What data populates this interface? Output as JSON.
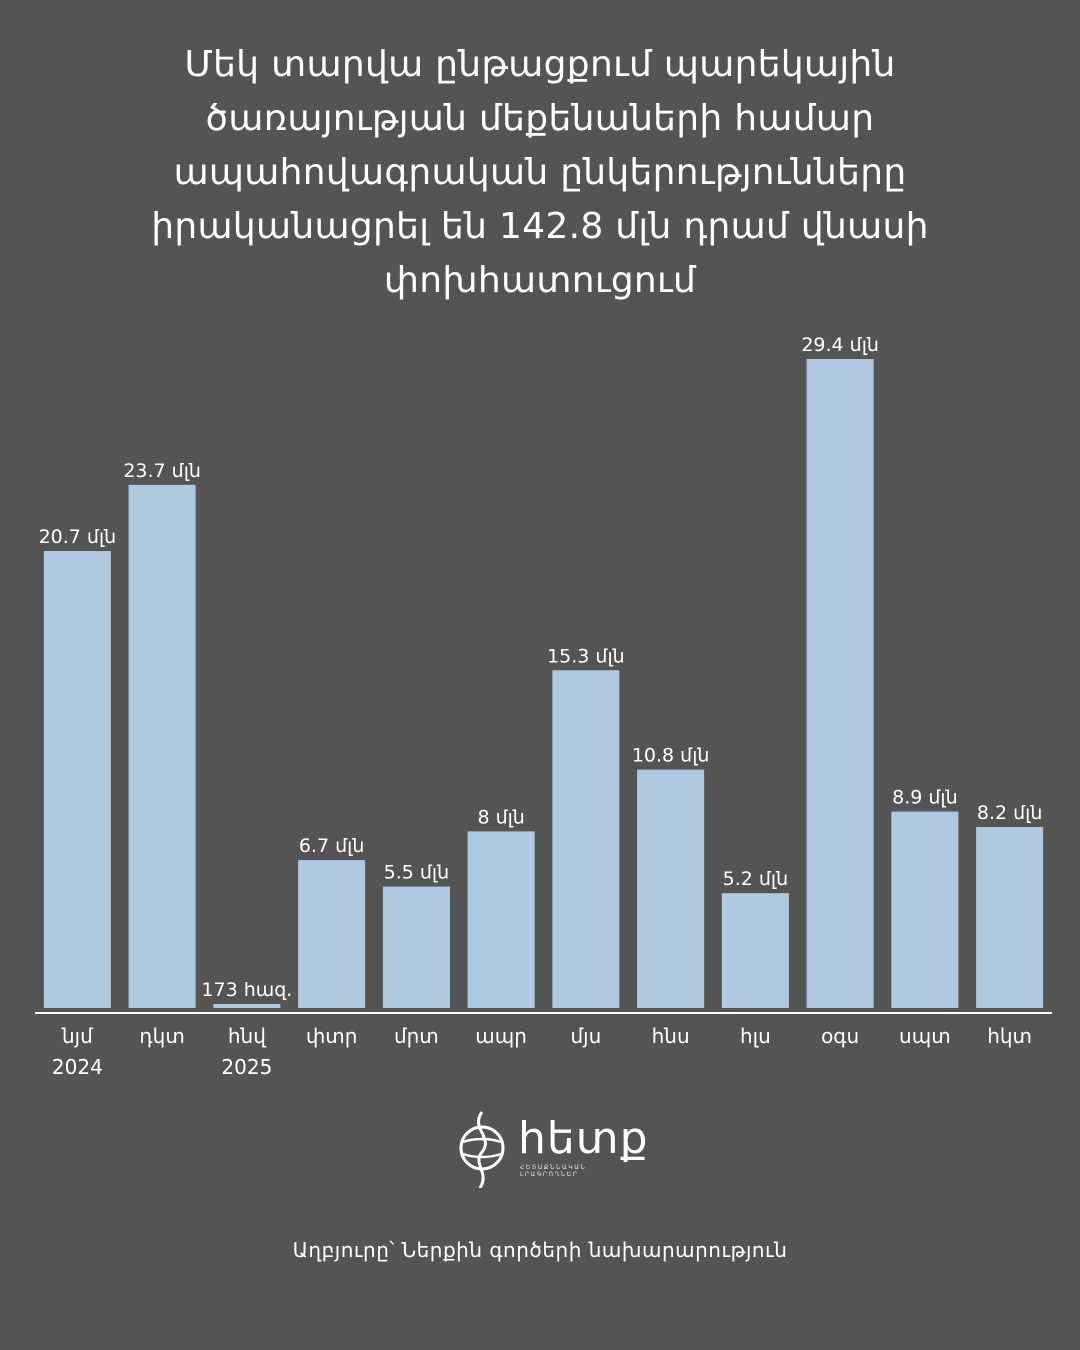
{
  "title_lines": [
    "Մեկ տարվա ընթացքում պարեկային",
    "ծառայության մեքենաների համար",
    "ապահովագրական ընկերությունները",
    "իրականացրել են 142.8 մլն դրամ վնասի",
    "փոխհատուցում"
  ],
  "source": "Աղբյուրը՝ Ներքին գործերի նախարարություն",
  "logo": {
    "word": "հետք",
    "sub": "ՀԵՏԱՔՆՆԱԿԱՆ ԼՐԱԳՐՈՂՆԵՐ",
    "icon": "hetq-globe-icon"
  },
  "colors": {
    "background": "#545454",
    "bar": "#afcae0",
    "text": "#ffffff",
    "axis": "#ffffff"
  },
  "chart_data": {
    "type": "bar",
    "title": "Մեկ տարվա ընթացքում պարեկային ծառայության մեքենաների համար ապահովագրական ընկերությունները իրականացրել են 142.8 մլն դրամ վնասի փոխհատուցում",
    "unit": "մլն դրամ",
    "categories": [
      [
        "նյմ",
        "2024"
      ],
      [
        "դկտ"
      ],
      [
        "հնվ",
        "2025"
      ],
      [
        "փտր"
      ],
      [
        "մրտ"
      ],
      [
        "ապր"
      ],
      [
        "մյս"
      ],
      [
        "հնս"
      ],
      [
        "հլս"
      ],
      [
        "օգս"
      ],
      [
        "սպտ"
      ],
      [
        "հկտ"
      ]
    ],
    "values": [
      20.7,
      23.7,
      0.173,
      6.7,
      5.5,
      8,
      15.3,
      10.8,
      5.2,
      29.4,
      8.9,
      8.2
    ],
    "data_labels": [
      "20.7 մլն",
      "23.7 մլն",
      "173 հազ.",
      "6.7 մլն",
      "5.5 մլն",
      "8 մլն",
      "15.3 մլն",
      "10.8 մլն",
      "5.2 մլն",
      "29.4 մլն",
      "8.9 մլն",
      "8.2 մլն"
    ],
    "ylim": [
      0,
      29.4
    ],
    "grid": false,
    "legend": "none"
  }
}
